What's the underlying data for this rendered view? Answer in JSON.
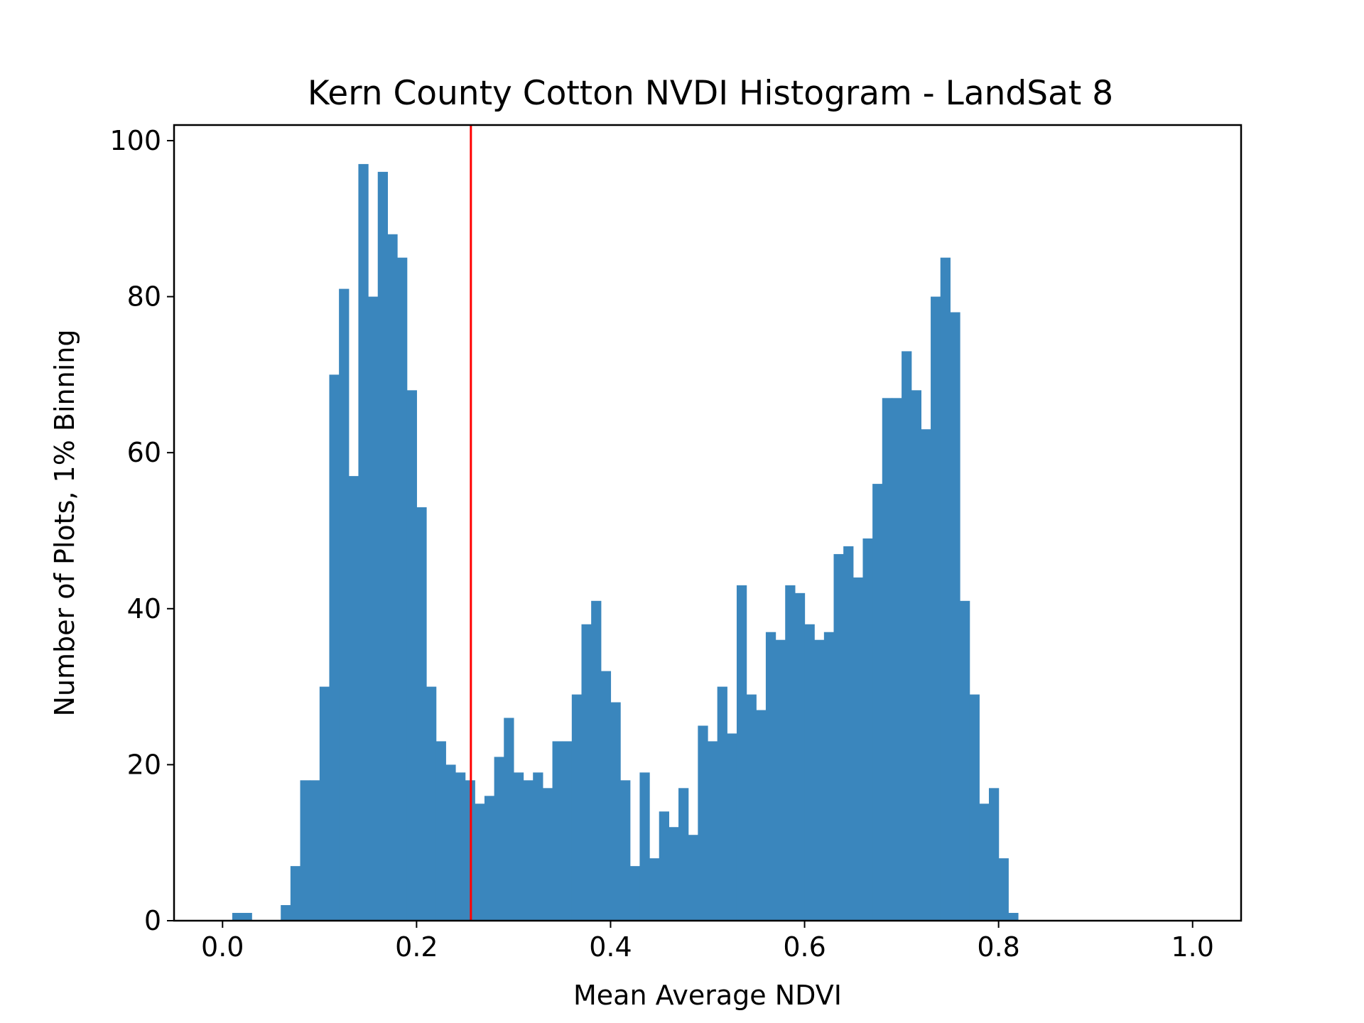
{
  "chart_data": {
    "type": "bar",
    "title": "Kern County Cotton NVDI Histogram - LandSat 8",
    "xlabel": "Mean Average NDVI",
    "ylabel": "Number of Plots, 1% Binning",
    "xlim": [
      -0.05,
      1.05
    ],
    "ylim": [
      0,
      102
    ],
    "xticks": [
      "0.0",
      "0.2",
      "0.4",
      "0.6",
      "0.8",
      "1.0"
    ],
    "xtick_values": [
      0.0,
      0.2,
      0.4,
      0.6,
      0.8,
      1.0
    ],
    "yticks": [
      "0",
      "20",
      "40",
      "60",
      "80",
      "100"
    ],
    "ytick_values": [
      0,
      20,
      40,
      60,
      80,
      100
    ],
    "bin_width": 0.01,
    "bin_starts": [
      0.01,
      0.02,
      0.03,
      0.04,
      0.05,
      0.06,
      0.07,
      0.08,
      0.09,
      0.1,
      0.11,
      0.12,
      0.13,
      0.14,
      0.15,
      0.16,
      0.17,
      0.18,
      0.19,
      0.2,
      0.21,
      0.22,
      0.23,
      0.24,
      0.25,
      0.26,
      0.27,
      0.28,
      0.29,
      0.3,
      0.31,
      0.32,
      0.33,
      0.34,
      0.35,
      0.36,
      0.37,
      0.38,
      0.39,
      0.4,
      0.41,
      0.42,
      0.43,
      0.44,
      0.45,
      0.46,
      0.47,
      0.48,
      0.49,
      0.5,
      0.51,
      0.52,
      0.53,
      0.54,
      0.55,
      0.56,
      0.57,
      0.58,
      0.59,
      0.6,
      0.61,
      0.62,
      0.63,
      0.64,
      0.65,
      0.66,
      0.67,
      0.68,
      0.69,
      0.7,
      0.71,
      0.72,
      0.73,
      0.74,
      0.75,
      0.76,
      0.77,
      0.78,
      0.79,
      0.8,
      0.81,
      0.82
    ],
    "values": [
      1,
      1,
      0,
      0,
      0,
      2,
      7,
      18,
      18,
      30,
      70,
      81,
      57,
      97,
      80,
      96,
      88,
      85,
      68,
      53,
      30,
      23,
      20,
      19,
      18,
      15,
      16,
      21,
      26,
      19,
      18,
      19,
      17,
      23,
      23,
      29,
      38,
      41,
      32,
      28,
      18,
      7,
      19,
      8,
      14,
      12,
      17,
      11,
      25,
      23,
      30,
      24,
      43,
      29,
      27,
      37,
      36,
      43,
      42,
      38,
      36,
      37,
      47,
      48,
      44,
      49,
      56,
      67,
      67,
      73,
      68,
      63,
      80,
      85,
      78,
      41,
      29,
      15,
      17,
      8,
      1,
      0
    ],
    "bar_color": "#3a86bd",
    "threshold_line": {
      "x": 0.256,
      "color": "#ff0000"
    },
    "grid": false
  }
}
